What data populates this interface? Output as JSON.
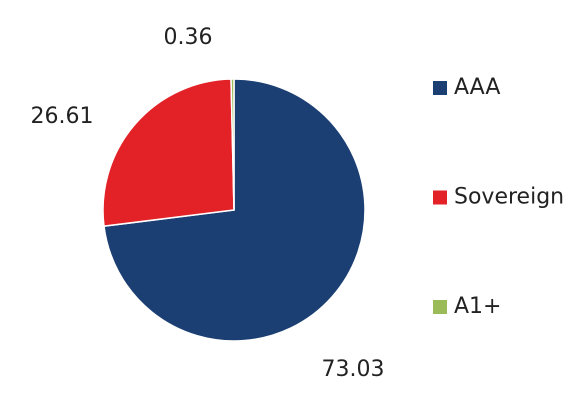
{
  "chart_data": {
    "type": "pie",
    "categories": [
      "AAA",
      "Sovereign",
      "A1+"
    ],
    "values": [
      73.03,
      26.61,
      0.36
    ],
    "colors": [
      "#1b3f73",
      "#e32227",
      "#9bbb59"
    ],
    "legend": "right"
  }
}
